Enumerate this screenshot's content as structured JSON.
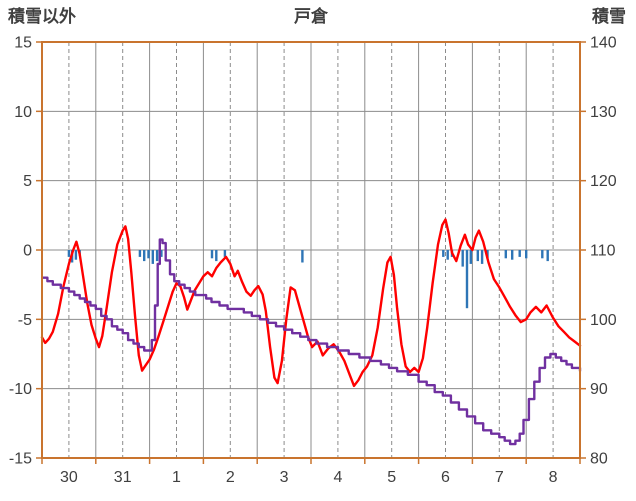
{
  "chart_data": {
    "type": "line",
    "title": "戸倉",
    "x": {
      "labels": [
        "30",
        "31",
        "1",
        "2",
        "3",
        "4",
        "5",
        "6",
        "7",
        "8"
      ],
      "range": [
        0,
        10
      ],
      "unit": "day"
    },
    "left_axis": {
      "label": "積雪以外",
      "range": [
        -15,
        15
      ],
      "ticks": [
        15,
        10,
        5,
        0,
        -5,
        -10,
        -15
      ]
    },
    "right_axis": {
      "label": "積雪",
      "range": [
        80,
        140
      ],
      "ticks": [
        140,
        130,
        120,
        110,
        100,
        90,
        80
      ]
    },
    "grid": {
      "horizontal": true,
      "vertical_solid": "day-boundaries",
      "vertical_dashed": "half-days"
    },
    "colors": {
      "axis_border": "#C9742E",
      "gridline": "#8C8C8C",
      "tick_label": "#404040",
      "red_line": "#FF0000",
      "purple_line": "#7030A0",
      "blue_bars": "#2E75B6"
    },
    "series": [
      {
        "name": "blue-bars",
        "type": "bar",
        "axis": "left",
        "color": "#2E75B6",
        "bar_width": 2.4,
        "points": [
          [
            0.5,
            -0.5
          ],
          [
            0.56,
            -0.9
          ],
          [
            0.63,
            -0.7
          ],
          [
            0.7,
            -0.4
          ],
          [
            1.82,
            -0.5
          ],
          [
            1.9,
            -0.8
          ],
          [
            1.98,
            -0.6
          ],
          [
            2.06,
            -1
          ],
          [
            2.14,
            -0.8
          ],
          [
            2.22,
            -0.5
          ],
          [
            3.16,
            -0.6
          ],
          [
            3.24,
            -0.8
          ],
          [
            3.4,
            -0.5
          ],
          [
            4.84,
            -0.9
          ],
          [
            7.46,
            -0.5
          ],
          [
            7.54,
            -0.7
          ],
          [
            7.62,
            -0.5
          ],
          [
            7.82,
            -1.2
          ],
          [
            7.9,
            -4.2
          ],
          [
            7.97,
            -1
          ],
          [
            8.1,
            -0.8
          ],
          [
            8.18,
            -1
          ],
          [
            8.28,
            -0.6
          ],
          [
            8.62,
            -0.6
          ],
          [
            8.74,
            -0.7
          ],
          [
            8.88,
            -0.5
          ],
          [
            9,
            -0.6
          ],
          [
            9.3,
            -0.6
          ],
          [
            9.4,
            -0.8
          ]
        ]
      },
      {
        "name": "red-line",
        "type": "line",
        "axis": "left",
        "color": "#FF0000",
        "width": 2.4,
        "points": [
          [
            0,
            -6.3
          ],
          [
            0.06,
            -6.7
          ],
          [
            0.13,
            -6.4
          ],
          [
            0.2,
            -5.9
          ],
          [
            0.3,
            -4.6
          ],
          [
            0.4,
            -2.6
          ],
          [
            0.5,
            -1
          ],
          [
            0.58,
            0
          ],
          [
            0.64,
            0.6
          ],
          [
            0.7,
            -0.3
          ],
          [
            0.76,
            -1.8
          ],
          [
            0.84,
            -3.8
          ],
          [
            0.92,
            -5.4
          ],
          [
            1,
            -6.4
          ],
          [
            1.06,
            -7
          ],
          [
            1.12,
            -6.2
          ],
          [
            1.2,
            -4.2
          ],
          [
            1.3,
            -1.6
          ],
          [
            1.4,
            0.4
          ],
          [
            1.5,
            1.4
          ],
          [
            1.55,
            1.7
          ],
          [
            1.6,
            0.8
          ],
          [
            1.66,
            -1.6
          ],
          [
            1.73,
            -4.8
          ],
          [
            1.8,
            -7.6
          ],
          [
            1.86,
            -8.7
          ],
          [
            1.93,
            -8.3
          ],
          [
            2,
            -7.9
          ],
          [
            2.08,
            -7.2
          ],
          [
            2.16,
            -6.3
          ],
          [
            2.25,
            -5.2
          ],
          [
            2.34,
            -4.1
          ],
          [
            2.43,
            -3
          ],
          [
            2.5,
            -2.4
          ],
          [
            2.57,
            -2.6
          ],
          [
            2.64,
            -3.4
          ],
          [
            2.7,
            -4.3
          ],
          [
            2.76,
            -3.7
          ],
          [
            2.84,
            -2.9
          ],
          [
            2.92,
            -2.4
          ],
          [
            3,
            -1.9
          ],
          [
            3.08,
            -1.6
          ],
          [
            3.16,
            -1.9
          ],
          [
            3.24,
            -1.3
          ],
          [
            3.32,
            -0.9
          ],
          [
            3.42,
            -0.5
          ],
          [
            3.5,
            -1
          ],
          [
            3.58,
            -1.9
          ],
          [
            3.64,
            -1.5
          ],
          [
            3.72,
            -2.3
          ],
          [
            3.8,
            -3
          ],
          [
            3.88,
            -3.3
          ],
          [
            3.95,
            -2.9
          ],
          [
            4.02,
            -2.6
          ],
          [
            4.1,
            -3.2
          ],
          [
            4.16,
            -4.4
          ],
          [
            4.24,
            -7
          ],
          [
            4.32,
            -9.2
          ],
          [
            4.38,
            -9.6
          ],
          [
            4.46,
            -8
          ],
          [
            4.54,
            -5
          ],
          [
            4.62,
            -2.7
          ],
          [
            4.7,
            -2.9
          ],
          [
            4.78,
            -4
          ],
          [
            4.86,
            -5.1
          ],
          [
            4.94,
            -6.2
          ],
          [
            5.02,
            -7
          ],
          [
            5.12,
            -6.6
          ],
          [
            5.22,
            -7.6
          ],
          [
            5.32,
            -7.1
          ],
          [
            5.42,
            -6.8
          ],
          [
            5.52,
            -7.3
          ],
          [
            5.62,
            -8
          ],
          [
            5.72,
            -9
          ],
          [
            5.8,
            -9.8
          ],
          [
            5.88,
            -9.4
          ],
          [
            5.96,
            -8.8
          ],
          [
            6.04,
            -8.4
          ],
          [
            6.14,
            -7.6
          ],
          [
            6.24,
            -5.6
          ],
          [
            6.34,
            -2.8
          ],
          [
            6.42,
            -0.9
          ],
          [
            6.48,
            -0.5
          ],
          [
            6.54,
            -1.8
          ],
          [
            6.6,
            -4.2
          ],
          [
            6.68,
            -6.8
          ],
          [
            6.76,
            -8.4
          ],
          [
            6.84,
            -8.8
          ],
          [
            6.92,
            -8.5
          ],
          [
            7,
            -8.8
          ],
          [
            7.08,
            -7.8
          ],
          [
            7.16,
            -5.6
          ],
          [
            7.26,
            -2.4
          ],
          [
            7.36,
            0.4
          ],
          [
            7.44,
            1.8
          ],
          [
            7.5,
            2.2
          ],
          [
            7.56,
            1.2
          ],
          [
            7.62,
            -0.2
          ],
          [
            7.7,
            -0.8
          ],
          [
            7.78,
            0.3
          ],
          [
            7.86,
            1.1
          ],
          [
            7.92,
            0.4
          ],
          [
            8,
            0
          ],
          [
            8.06,
            0.9
          ],
          [
            8.12,
            1.4
          ],
          [
            8.2,
            0.6
          ],
          [
            8.3,
            -0.9
          ],
          [
            8.4,
            -2.1
          ],
          [
            8.5,
            -2.7
          ],
          [
            8.6,
            -3.4
          ],
          [
            8.7,
            -4.1
          ],
          [
            8.8,
            -4.7
          ],
          [
            8.9,
            -5.2
          ],
          [
            9,
            -5
          ],
          [
            9.08,
            -4.5
          ],
          [
            9.18,
            -4.1
          ],
          [
            9.28,
            -4.5
          ],
          [
            9.38,
            -4
          ],
          [
            9.5,
            -4.9
          ],
          [
            9.6,
            -5.5
          ],
          [
            9.7,
            -5.9
          ],
          [
            9.8,
            -6.3
          ],
          [
            9.9,
            -6.6
          ],
          [
            10,
            -6.9
          ]
        ]
      },
      {
        "name": "purple-line",
        "type": "line",
        "axis": "right",
        "color": "#7030A0",
        "width": 2.4,
        "step": true,
        "points": [
          [
            0,
            106
          ],
          [
            0.1,
            105.5
          ],
          [
            0.2,
            105
          ],
          [
            0.35,
            104.5
          ],
          [
            0.5,
            104
          ],
          [
            0.6,
            103.5
          ],
          [
            0.7,
            103
          ],
          [
            0.8,
            102.5
          ],
          [
            0.9,
            102
          ],
          [
            1,
            101.5
          ],
          [
            1.1,
            100.5
          ],
          [
            1.2,
            100
          ],
          [
            1.3,
            99
          ],
          [
            1.4,
            98.5
          ],
          [
            1.5,
            98
          ],
          [
            1.6,
            97
          ],
          [
            1.7,
            96.5
          ],
          [
            1.8,
            96
          ],
          [
            1.9,
            95.5
          ],
          [
            1.98,
            95.5
          ],
          [
            2.04,
            97
          ],
          [
            2.1,
            102
          ],
          [
            2.15,
            108
          ],
          [
            2.19,
            111.5
          ],
          [
            2.24,
            111
          ],
          [
            2.3,
            108.5
          ],
          [
            2.38,
            106.5
          ],
          [
            2.46,
            105.5
          ],
          [
            2.55,
            105
          ],
          [
            2.65,
            104.5
          ],
          [
            2.75,
            104
          ],
          [
            2.85,
            103.5
          ],
          [
            2.95,
            103.5
          ],
          [
            3.05,
            103
          ],
          [
            3.15,
            102.5
          ],
          [
            3.3,
            102
          ],
          [
            3.45,
            101.5
          ],
          [
            3.6,
            101.5
          ],
          [
            3.75,
            101
          ],
          [
            3.9,
            100.5
          ],
          [
            4.05,
            100
          ],
          [
            4.2,
            99.5
          ],
          [
            4.35,
            99
          ],
          [
            4.5,
            98.5
          ],
          [
            4.65,
            98
          ],
          [
            4.8,
            97.5
          ],
          [
            4.95,
            97
          ],
          [
            5.1,
            96.5
          ],
          [
            5.3,
            96
          ],
          [
            5.5,
            95.5
          ],
          [
            5.7,
            95
          ],
          [
            5.9,
            94.5
          ],
          [
            6.1,
            94
          ],
          [
            6.3,
            93.5
          ],
          [
            6.45,
            93
          ],
          [
            6.6,
            92.5
          ],
          [
            6.8,
            92
          ],
          [
            7,
            91
          ],
          [
            7.15,
            90.5
          ],
          [
            7.3,
            89.5
          ],
          [
            7.45,
            89
          ],
          [
            7.6,
            88
          ],
          [
            7.75,
            87
          ],
          [
            7.9,
            86
          ],
          [
            8.05,
            85
          ],
          [
            8.2,
            84
          ],
          [
            8.35,
            83.5
          ],
          [
            8.5,
            83
          ],
          [
            8.6,
            82.5
          ],
          [
            8.7,
            82
          ],
          [
            8.8,
            82.5
          ],
          [
            8.88,
            83.5
          ],
          [
            8.95,
            85.5
          ],
          [
            9.05,
            88.5
          ],
          [
            9.15,
            91
          ],
          [
            9.25,
            93
          ],
          [
            9.35,
            94.5
          ],
          [
            9.45,
            95
          ],
          [
            9.55,
            94.5
          ],
          [
            9.65,
            94
          ],
          [
            9.75,
            93.5
          ],
          [
            9.85,
            93
          ],
          [
            10,
            92.5
          ]
        ]
      }
    ]
  }
}
